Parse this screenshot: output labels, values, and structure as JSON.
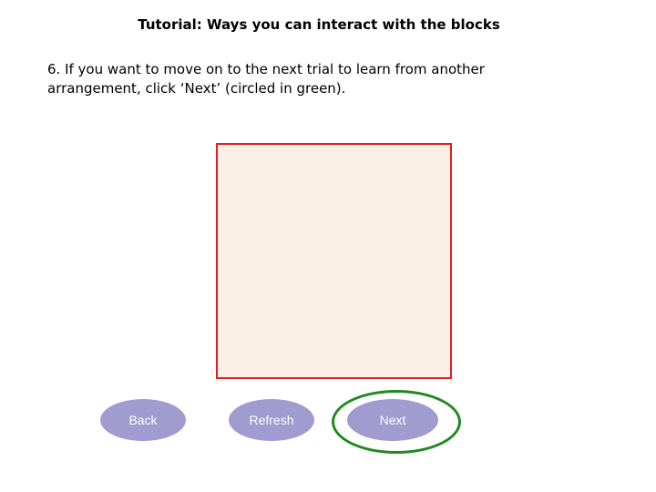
{
  "tutorial": {
    "title": "Tutorial: Ways you can interact with the blocks",
    "instruction": "6. If you want to move on to the next trial to learn from another arrangement, click ‘Next’ (circled in green)."
  },
  "controls": {
    "back_label": "Back",
    "refresh_label": "Refresh",
    "next_label": "Next"
  },
  "colors": {
    "workspace_border": "#e41f1f",
    "workspace_fill": "#faf0e6",
    "button_fill": "#a09ccf",
    "highlight_ring": "#1f8a1f"
  }
}
